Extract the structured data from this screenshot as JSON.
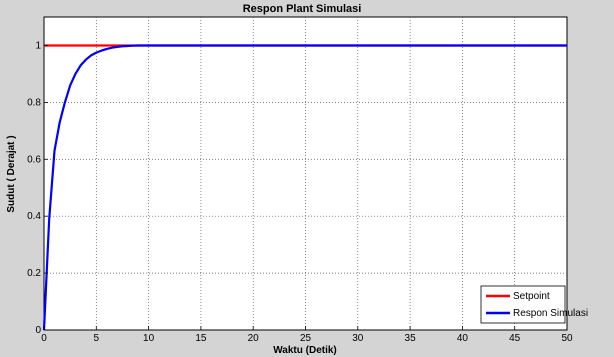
{
  "chart_data": {
    "type": "line",
    "title": "Respon Plant Simulasi",
    "xlabel": "Waktu (Detik)",
    "ylabel": "Sudut ( Derajat )",
    "xlim": [
      0,
      50
    ],
    "ylim": [
      0,
      1.1
    ],
    "xticks": [
      "0",
      "5",
      "10",
      "15",
      "20",
      "25",
      "30",
      "35",
      "40",
      "45",
      "50"
    ],
    "yticks": [
      "0",
      "0.2",
      "0.4",
      "0.6",
      "0.8",
      "1"
    ],
    "grid": true,
    "legend_position": "bottom-right",
    "series": [
      {
        "name": "Setpoint",
        "color": "#ff0000",
        "x": [
          0,
          50
        ],
        "y": [
          1,
          1
        ]
      },
      {
        "name": "Respon Simulasi",
        "color": "#0000ff",
        "x": [
          0,
          0.5,
          1,
          1.5,
          2,
          2.5,
          3,
          3.5,
          4,
          4.5,
          5,
          5.5,
          6,
          6.5,
          7,
          7.5,
          8,
          8.5,
          9,
          10,
          12,
          15,
          20,
          30,
          40,
          50
        ],
        "y": [
          0,
          0.39,
          0.63,
          0.73,
          0.8,
          0.86,
          0.9,
          0.93,
          0.95,
          0.965,
          0.975,
          0.982,
          0.988,
          0.992,
          0.995,
          0.997,
          0.998,
          0.999,
          1,
          1,
          1,
          1,
          1,
          1,
          1,
          1
        ]
      }
    ]
  }
}
